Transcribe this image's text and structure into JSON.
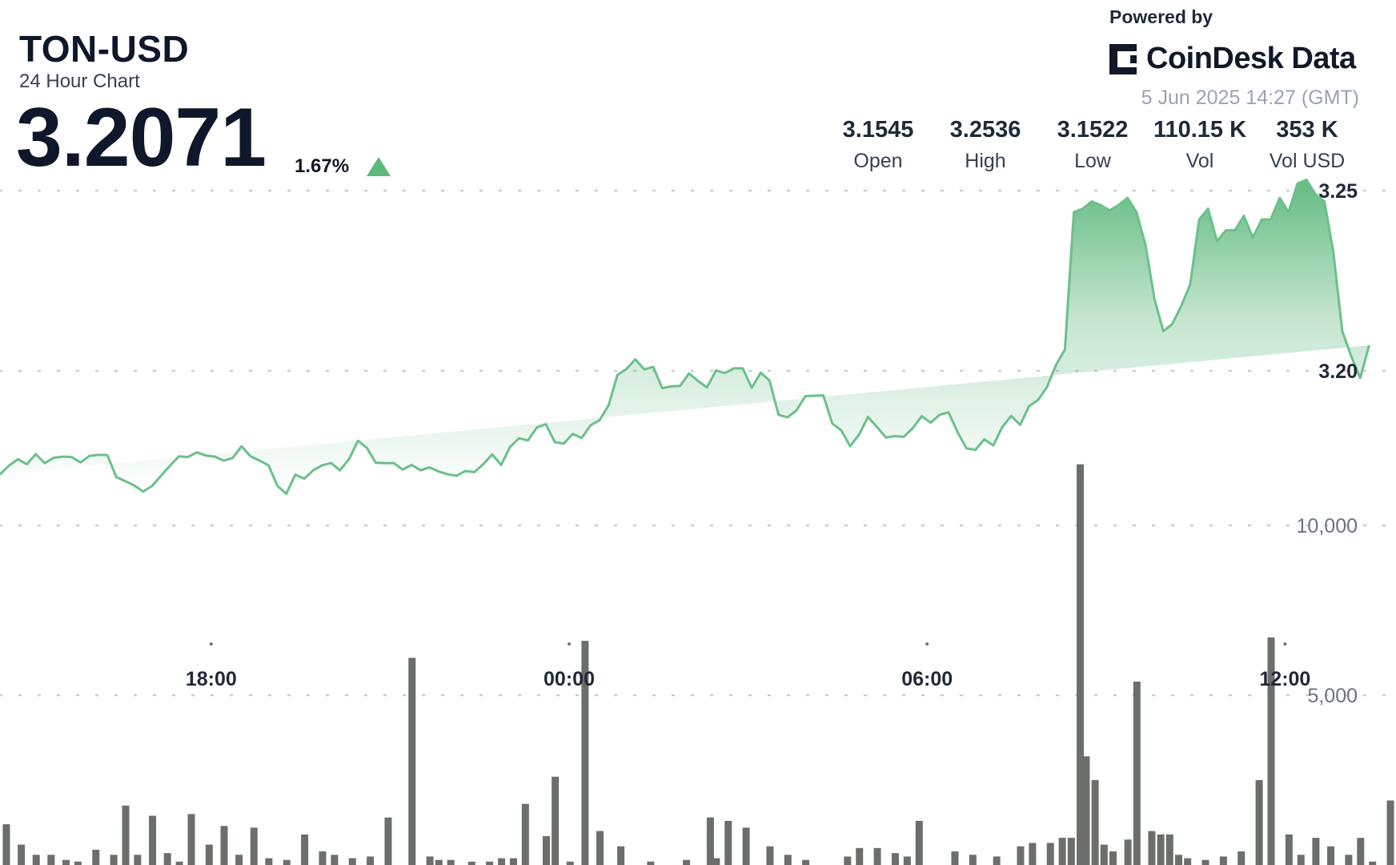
{
  "header": {
    "pair": "TON-USD",
    "subtitle": "24 Hour Chart",
    "price": "3.2071",
    "change": "1.67%",
    "change_direction": "up",
    "powered_by": "Powered by",
    "brand": "CoinDesk Data",
    "timestamp": "5 Jun 2025 14:27 (GMT)"
  },
  "stats": [
    {
      "value": "3.1545",
      "label": "Open"
    },
    {
      "value": "3.2536",
      "label": "High"
    },
    {
      "value": "3.1522",
      "label": "Low"
    },
    {
      "value": "110.15 K",
      "label": "Vol"
    },
    {
      "value": "353 K",
      "label": "Vol USD"
    }
  ],
  "colors": {
    "line": "#6cc08a",
    "area_top": "#5cb87c",
    "volume_bar": "#6b6f6b",
    "up": "#5cb87c"
  },
  "chart_data": {
    "type": "area",
    "x_tick_labels": [
      "18:00",
      "00:00",
      "06:00",
      "12:00"
    ],
    "x_tick_positions_hours": [
      3.54,
      9.54,
      15.54,
      21.54
    ],
    "x_range_hours": [
      0,
      23.4
    ],
    "price_axis": {
      "ticks": [
        "3.25",
        "3.20"
      ],
      "tick_values": [
        3.25,
        3.2
      ],
      "range": [
        3.152,
        3.256
      ]
    },
    "volume_axis": {
      "ticks": [
        "10,000",
        "5,000"
      ],
      "tick_values": [
        10000,
        5000
      ],
      "range": [
        0,
        14000
      ]
    },
    "grid": "dotted horizontal",
    "price_series": {
      "t": [
        0,
        0.15,
        0.3,
        0.45,
        0.6,
        0.75,
        0.9,
        1.05,
        1.2,
        1.35,
        1.5,
        1.65,
        1.8,
        1.95,
        2.1,
        2.25,
        2.4,
        2.55,
        2.7,
        2.85,
        3.0,
        3.15,
        3.3,
        3.45,
        3.6,
        3.75,
        3.9,
        4.05,
        4.2,
        4.35,
        4.5,
        4.65,
        4.8,
        4.95,
        5.1,
        5.25,
        5.4,
        5.55,
        5.7,
        5.85,
        6.0,
        6.15,
        6.3,
        6.45,
        6.6,
        6.75,
        6.9,
        7.05,
        7.2,
        7.35,
        7.5,
        7.65,
        7.8,
        7.95,
        8.1,
        8.25,
        8.4,
        8.55,
        8.7,
        8.85,
        9.0,
        9.15,
        9.3,
        9.45,
        9.6,
        9.75,
        9.9,
        10.05,
        10.2,
        10.35,
        10.5,
        10.65,
        10.8,
        10.95,
        11.1,
        11.25,
        11.4,
        11.55,
        11.7,
        11.85,
        12.0,
        12.15,
        12.3,
        12.45,
        12.6,
        12.75,
        12.9,
        13.05,
        13.2,
        13.35,
        13.5,
        13.65,
        13.8,
        13.95,
        14.1,
        14.25,
        14.4,
        14.55,
        14.7,
        14.85,
        15.0,
        15.15,
        15.3,
        15.45,
        15.6,
        15.75,
        15.9,
        16.05,
        16.2,
        16.35,
        16.5,
        16.65,
        16.8,
        16.95,
        17.1,
        17.25,
        17.4,
        17.55,
        17.7,
        17.85,
        18.0,
        18.15,
        18.3,
        18.45,
        18.6,
        18.75,
        18.9,
        19.05,
        19.2,
        19.35,
        19.5,
        19.65,
        19.8,
        19.95,
        20.1,
        20.25,
        20.4,
        20.55,
        20.7,
        20.85,
        21.0,
        21.15,
        21.3,
        21.45,
        21.6,
        21.75,
        21.9,
        22.05,
        22.2,
        22.35,
        22.5,
        22.65,
        22.8,
        22.95,
        23.1,
        23.25,
        23.4
      ],
      "price": [
        3.1713,
        3.1737,
        3.1755,
        3.1741,
        3.1769,
        3.1744,
        3.1759,
        3.1762,
        3.1761,
        3.1746,
        3.1764,
        3.1767,
        3.1766,
        3.1705,
        3.1694,
        3.1682,
        3.1665,
        3.1681,
        3.1709,
        3.1737,
        3.1763,
        3.1761,
        3.1774,
        3.1765,
        3.1762,
        3.1751,
        3.1758,
        3.1791,
        3.1763,
        3.1751,
        3.1738,
        3.1681,
        3.1659,
        3.1712,
        3.1701,
        3.1724,
        3.1738,
        3.1744,
        3.1724,
        3.1755,
        3.1806,
        3.1786,
        3.1745,
        3.1744,
        3.1744,
        3.1726,
        3.1739,
        3.1724,
        3.1732,
        3.1721,
        3.1713,
        3.1709,
        3.1722,
        3.1719,
        3.1741,
        3.1768,
        3.1739,
        3.1789,
        3.1813,
        3.1807,
        3.1843,
        3.1852,
        3.1802,
        3.1798,
        3.1825,
        3.1814,
        3.1849,
        3.1863,
        3.1904,
        3.1989,
        3.2005,
        3.2032,
        3.2004,
        3.2011,
        3.1952,
        3.1957,
        3.1958,
        3.1993,
        3.1972,
        3.1954,
        3.2001,
        3.1994,
        3.2007,
        3.2007,
        3.1953,
        3.1995,
        3.1973,
        3.1878,
        3.1871,
        3.189,
        3.193,
        3.1931,
        3.1932,
        3.1854,
        3.1835,
        3.1791,
        3.1823,
        3.1872,
        3.1844,
        3.1815,
        3.1819,
        3.1817,
        3.1841,
        3.1874,
        3.1856,
        3.1878,
        3.1885,
        3.183,
        3.1785,
        3.1781,
        3.181,
        3.1793,
        3.1844,
        3.1875,
        3.185,
        3.1902,
        3.1919,
        3.1955,
        3.2016,
        3.2059,
        3.244,
        3.245,
        3.247,
        3.246,
        3.2445,
        3.246,
        3.248,
        3.244,
        3.235,
        3.22,
        3.211,
        3.213,
        3.218,
        3.224,
        3.242,
        3.245,
        3.236,
        3.239,
        3.239,
        3.243,
        3.237,
        3.242,
        3.242,
        3.248,
        3.244,
        3.252,
        3.253,
        3.249,
        3.247,
        3.233,
        3.211,
        3.204,
        3.198,
        3.2071
      ]
    },
    "volume_series": {
      "t": [
        0.1,
        0.35,
        0.6,
        0.85,
        1.1,
        1.3,
        1.6,
        1.9,
        2.1,
        2.3,
        2.55,
        2.8,
        3.0,
        3.2,
        3.5,
        3.75,
        4.0,
        4.25,
        4.5,
        4.8,
        5.1,
        5.4,
        5.6,
        5.9,
        6.2,
        6.5,
        6.9,
        7.2,
        7.35,
        7.55,
        7.9,
        8.2,
        8.4,
        8.6,
        8.8,
        9.15,
        9.3,
        9.55,
        9.8,
        10.05,
        10.4,
        10.9,
        11.5,
        11.9,
        12.0,
        12.2,
        12.5,
        12.9,
        13.2,
        13.5,
        14.2,
        14.4,
        14.7,
        15.0,
        15.2,
        15.4,
        16.0,
        16.3,
        16.7,
        17.1,
        17.3,
        17.6,
        17.8,
        17.95,
        18.1,
        18.2,
        18.35,
        18.5,
        18.65,
        18.9,
        19.05,
        19.3,
        19.45,
        19.6,
        19.75,
        19.9,
        20.2,
        20.5,
        20.8,
        21.1,
        21.3,
        21.6,
        21.8,
        22.05,
        22.3,
        22.6,
        22.8,
        23.0,
        23.3
      ],
      "volume": [
        1200,
        600,
        300,
        300,
        150,
        100,
        450,
        300,
        1750,
        300,
        1450,
        350,
        100,
        1500,
        600,
        1150,
        300,
        1100,
        200,
        150,
        900,
        400,
        300,
        200,
        250,
        1400,
        6100,
        250,
        150,
        150,
        100,
        100,
        200,
        200,
        1800,
        850,
        2600,
        100,
        6600,
        1000,
        550,
        100,
        150,
        1400,
        200,
        1300,
        1100,
        550,
        300,
        150,
        250,
        500,
        500,
        350,
        250,
        1300,
        400,
        300,
        250,
        550,
        650,
        650,
        800,
        800,
        11800,
        3200,
        2500,
        600,
        400,
        750,
        5400,
        1000,
        900,
        900,
        300,
        200,
        150,
        250,
        400,
        2500,
        6700,
        900,
        300,
        800,
        550,
        300,
        800,
        100,
        1900
      ]
    }
  }
}
